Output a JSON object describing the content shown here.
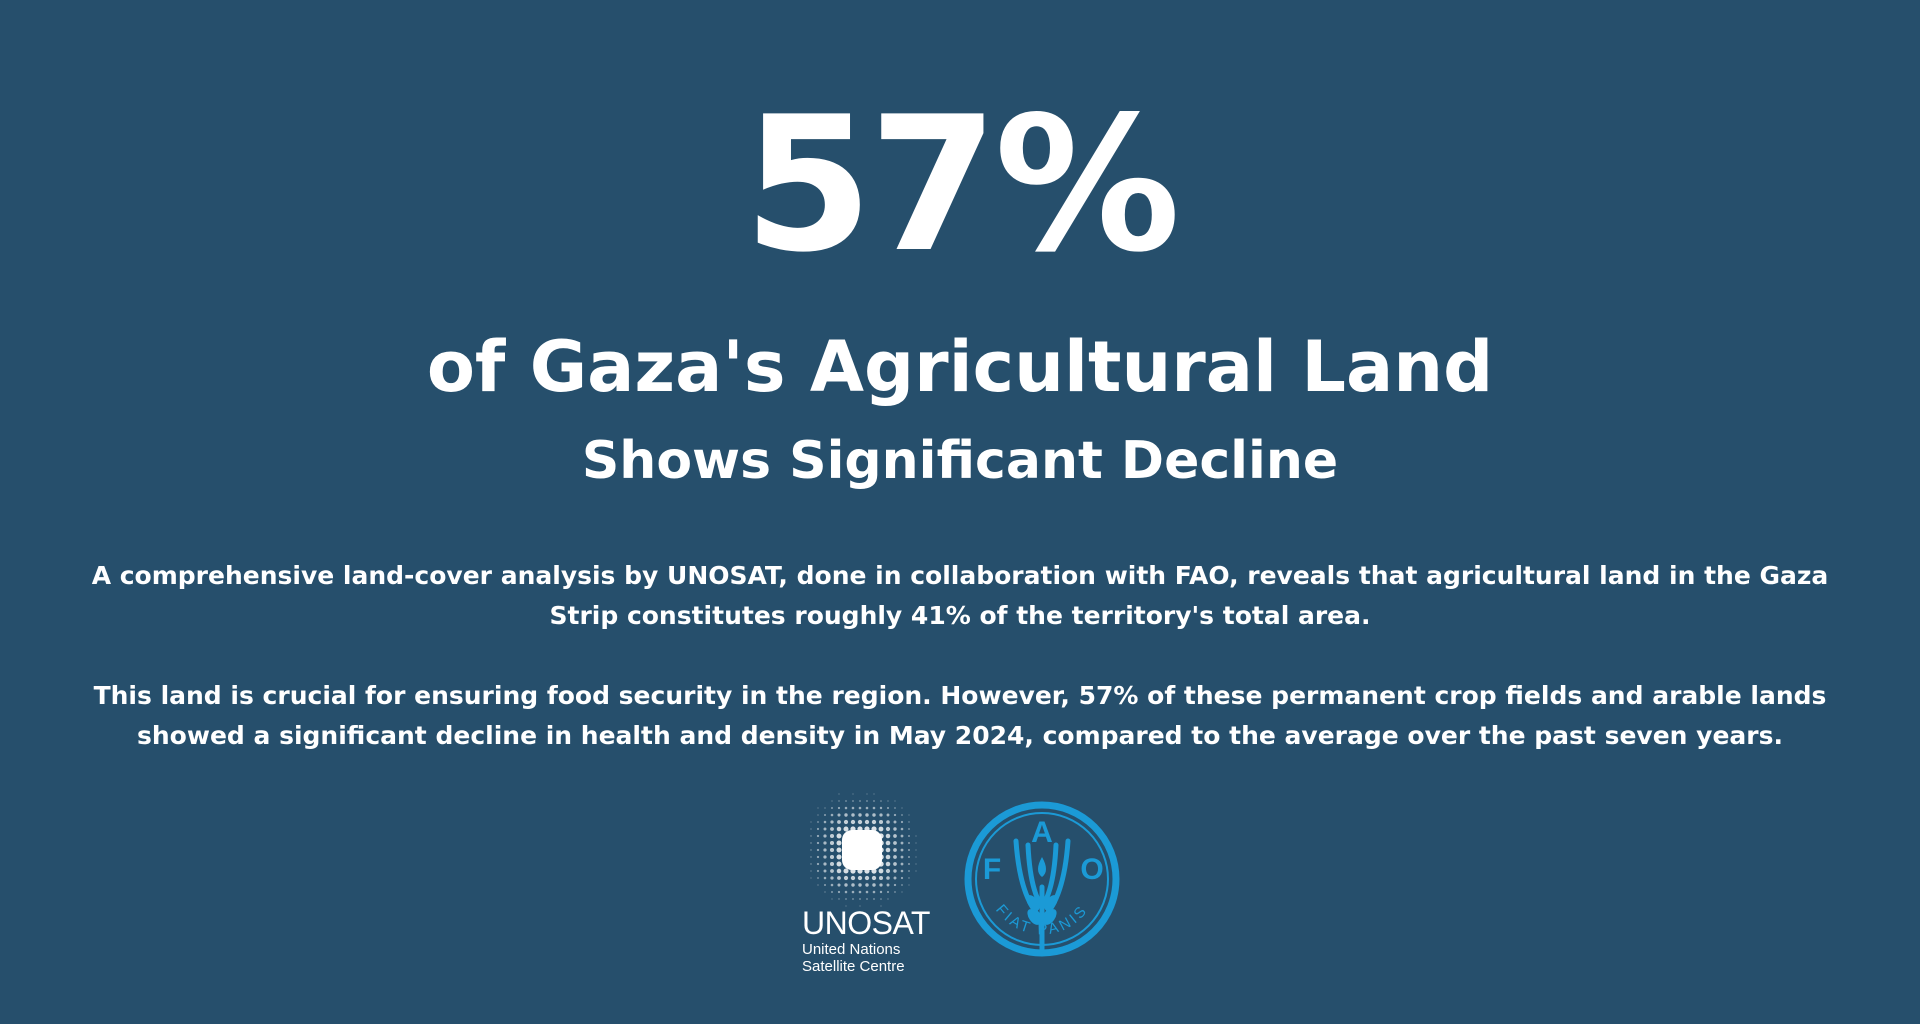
{
  "hero": {
    "stat": "57%",
    "headline": "of Gaza's Agricultural Land",
    "subheadline": "Shows Significant Decline"
  },
  "body": {
    "paragraph_1": "A comprehensive land-cover analysis by UNOSAT, done in collaboration with FAO, reveals that agricultural land in the Gaza Strip constitutes roughly 41% of the territory's total area.",
    "paragraph_2": "This land is crucial for ensuring food security in the region. However, 57% of these permanent crop fields and arable lands showed a significant decline in health and density in May 2024, compared to the average over the past seven years."
  },
  "logos": {
    "unosat": {
      "name": "UNOSAT",
      "line_1": "United Nations",
      "line_2": "Satellite Centre"
    },
    "fao": {
      "letter_f": "F",
      "letter_a": "A",
      "letter_o": "O",
      "motto": "FIAT PANIS"
    }
  },
  "colors": {
    "background": "#264f6c",
    "text": "#ffffff",
    "fao_blue": "#1b9ad6"
  }
}
